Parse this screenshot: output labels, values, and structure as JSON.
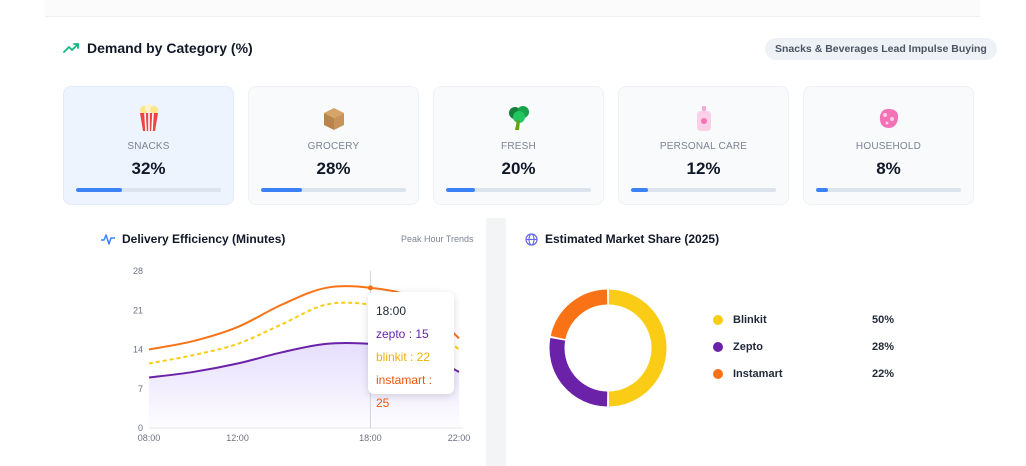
{
  "demand": {
    "title": "Demand by Category (%)",
    "badge": "Snacks & Beverages Lead Impulse Buying",
    "categories": [
      {
        "label": "SNACKS",
        "value": "32%",
        "share": 32,
        "icon": "popcorn-icon"
      },
      {
        "label": "GROCERY",
        "value": "28%",
        "share": 28,
        "icon": "box-icon"
      },
      {
        "label": "FRESH",
        "value": "20%",
        "share": 20,
        "icon": "broccoli-icon"
      },
      {
        "label": "PERSONAL CARE",
        "value": "12%",
        "share": 12,
        "icon": "lotion-bottle-icon"
      },
      {
        "label": "HOUSEHOLD",
        "value": "8%",
        "share": 8,
        "icon": "sponge-icon"
      }
    ]
  },
  "delivery": {
    "title": "Delivery Efficiency (Minutes)",
    "subtitle": "Peak Hour Trends",
    "tooltip": {
      "time": "18:00",
      "zepto": "zepto : 15",
      "blinkit": "blinkit : 22",
      "instamart": "instamart : 25"
    }
  },
  "market": {
    "title": "Estimated Market Share (2025)",
    "legend": [
      {
        "name": "Blinkit",
        "value": "50%"
      },
      {
        "name": "Zepto",
        "value": "28%"
      },
      {
        "name": "Instamart",
        "value": "22%"
      }
    ]
  },
  "colors": {
    "accent_blue": "#3b82f6",
    "blinkit": "#facc15",
    "zepto": "#6b21a8",
    "instamart": "#f97316",
    "trend_green": "#10b981"
  },
  "chart_data": [
    {
      "type": "line",
      "title": "Delivery Efficiency (Minutes)",
      "x": [
        "08:00",
        "10:00",
        "12:00",
        "14:00",
        "16:00",
        "18:00",
        "20:00",
        "22:00"
      ],
      "x_ticks": [
        "08:00",
        "12:00",
        "18:00",
        "22:00"
      ],
      "y_ticks": [
        0,
        7,
        14,
        21,
        28
      ],
      "ylim": [
        0,
        28
      ],
      "series": [
        {
          "name": "instamart",
          "values": [
            14,
            15.5,
            18,
            22,
            25,
            25,
            23,
            16
          ]
        },
        {
          "name": "blinkit",
          "values": [
            11.5,
            13,
            15,
            18.5,
            22,
            22,
            20,
            14
          ]
        },
        {
          "name": "zepto",
          "values": [
            9,
            10,
            11.5,
            13.5,
            15,
            15,
            14,
            10
          ]
        }
      ],
      "area_series": "zepto",
      "tooltip_x": "18:00"
    },
    {
      "type": "pie",
      "title": "Estimated Market Share (2025)",
      "donut": true,
      "slices": [
        {
          "name": "Blinkit",
          "value": 50
        },
        {
          "name": "Zepto",
          "value": 28
        },
        {
          "name": "Instamart",
          "value": 22
        }
      ]
    }
  ]
}
